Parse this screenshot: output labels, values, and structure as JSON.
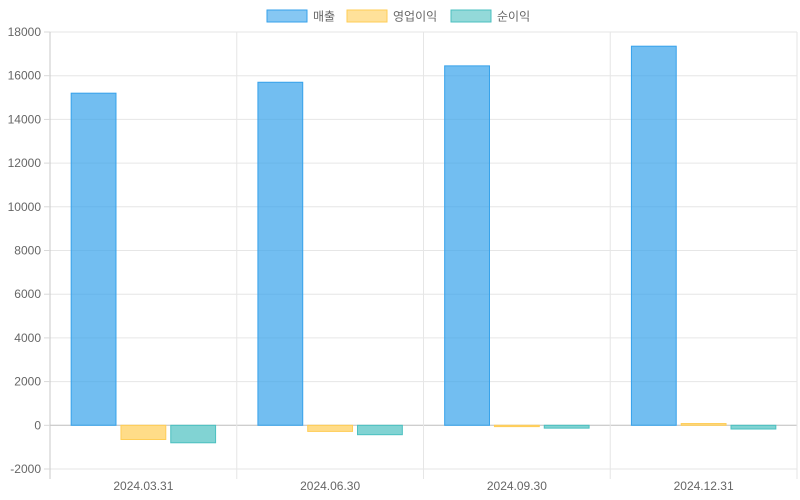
{
  "chart_data": {
    "type": "bar",
    "categories": [
      "2024.03.31",
      "2024.06.30",
      "2024.09.30",
      "2024.12.31"
    ],
    "series": [
      {
        "name": "매출",
        "values": [
          15200,
          15700,
          16450,
          17350
        ],
        "color": "#36A2EB"
      },
      {
        "name": "영업이익",
        "values": [
          -650,
          -280,
          -60,
          80
        ],
        "color": "#FFCD56"
      },
      {
        "name": "순이익",
        "values": [
          -800,
          -430,
          -130,
          -170
        ],
        "color": "#4BC0C0"
      }
    ],
    "yticks": [
      -2000,
      0,
      2000,
      4000,
      6000,
      8000,
      10000,
      12000,
      14000,
      16000,
      18000
    ],
    "ylim": [
      -2000,
      18000
    ],
    "grid": true,
    "legend": "top-center"
  }
}
